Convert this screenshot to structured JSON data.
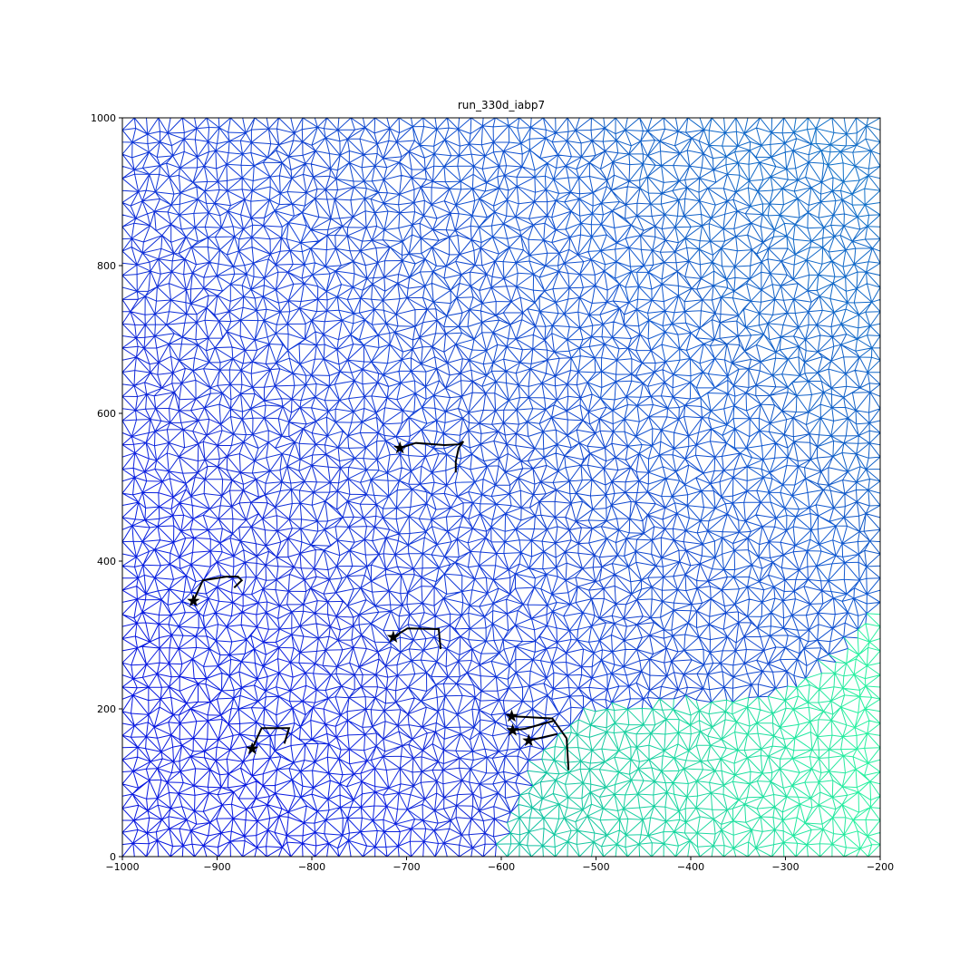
{
  "chart_data": {
    "type": "line",
    "title": "run_330d_iabp7",
    "xlim": [
      -1000,
      -200
    ],
    "ylim": [
      0,
      1000
    ],
    "xticks": [
      {
        "value": -1000,
        "label": "−1000"
      },
      {
        "value": -900,
        "label": "−900"
      },
      {
        "value": -800,
        "label": "−800"
      },
      {
        "value": -700,
        "label": "−700"
      },
      {
        "value": -600,
        "label": "−600"
      },
      {
        "value": -500,
        "label": "−500"
      },
      {
        "value": -400,
        "label": "−400"
      },
      {
        "value": -300,
        "label": "−300"
      },
      {
        "value": -200,
        "label": "−200"
      }
    ],
    "yticks": [
      0,
      200,
      400,
      600,
      800,
      1000
    ],
    "series": [
      {
        "color": "#000000",
        "x": [
          -707,
          -690,
          -660,
          -645,
          -640,
          -645,
          -648,
          -648
        ],
        "values": [
          553,
          560,
          557,
          558,
          562,
          553,
          535,
          520
        ]
      },
      {
        "color": "#000000",
        "x": [
          -925,
          -915,
          -890,
          -878,
          -874,
          -882
        ],
        "values": [
          346,
          374,
          379,
          379,
          374,
          364
        ]
      },
      {
        "color": "#000000",
        "x": [
          -714,
          -699,
          -666,
          -664
        ],
        "values": [
          297,
          309,
          308,
          281
        ]
      },
      {
        "color": "#000000",
        "x": [
          -863,
          -853,
          -824,
          -829
        ],
        "values": [
          146,
          174,
          174,
          153
        ]
      },
      {
        "color": "#000000",
        "x": [
          -589,
          -546,
          -531,
          -529
        ],
        "values": [
          190,
          187,
          160,
          117
        ]
      },
      {
        "color": "#000000",
        "x": [
          -588,
          -575,
          -544
        ],
        "values": [
          171,
          173,
          184
        ]
      },
      {
        "color": "#000000",
        "x": [
          -571,
          -541
        ],
        "values": [
          157,
          166
        ]
      }
    ]
  }
}
